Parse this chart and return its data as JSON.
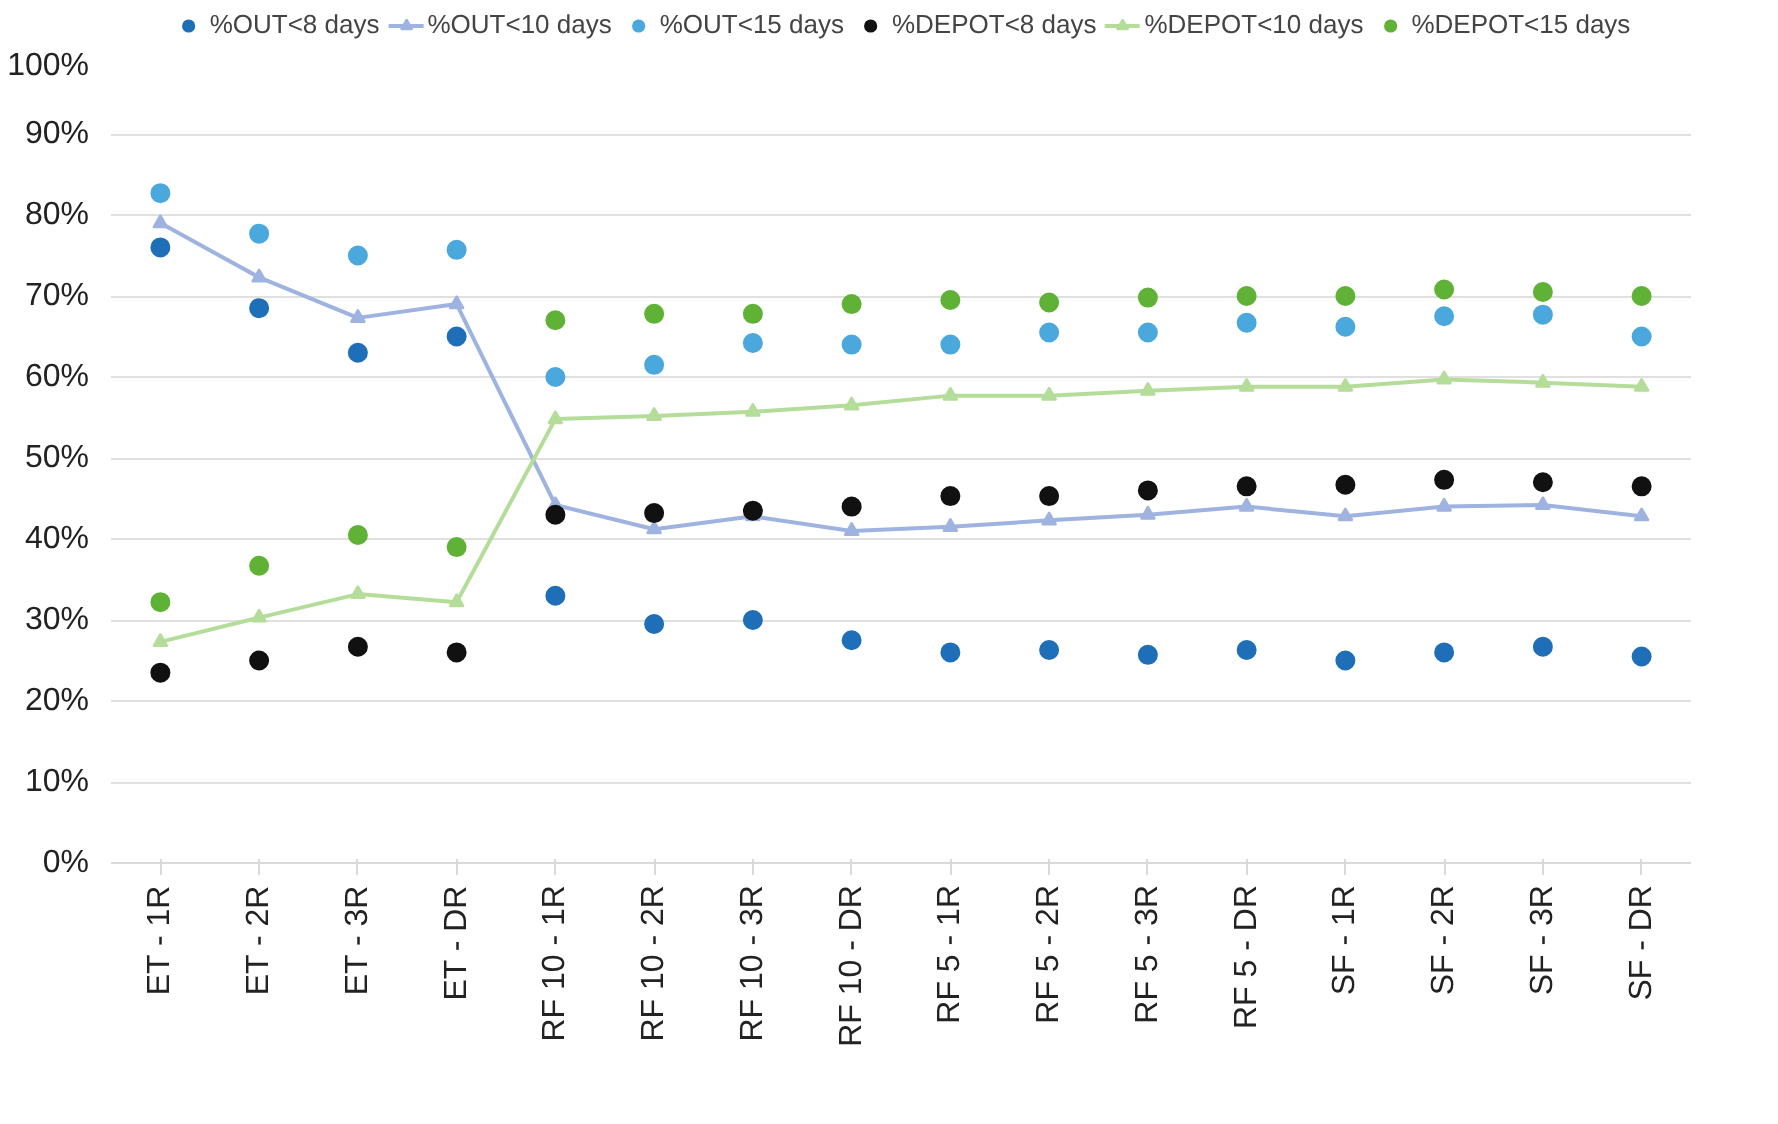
{
  "chart_data": {
    "type": "scatter",
    "categories": [
      "ET - 1R",
      "ET - 2R",
      "ET - 3R",
      "ET - DR",
      "RF 10 - 1R",
      "RF 10 - 2R",
      "RF 10 - 3R",
      "RF 10 - DR",
      "RF 5 - 1R",
      "RF 5 - 2R",
      "RF 5 - 3R",
      "RF 5 - DR",
      "SF - 1R",
      "SF - 2R",
      "SF - 3R",
      "SF - DR"
    ],
    "series": [
      {
        "name": "%OUT<8 days",
        "color": "#1f6fb8",
        "values": [
          76,
          68.5,
          63,
          65,
          33,
          29.5,
          30,
          27.5,
          26,
          26.3,
          25.7,
          26.3,
          25,
          26,
          26.7,
          25.5
        ]
      },
      {
        "name": "%OUT<10 days",
        "type": "line",
        "marker": "triangle",
        "color": "#9fb3e0",
        "values": [
          79,
          72.3,
          67.3,
          69,
          44.2,
          41.2,
          42.8,
          41,
          41.5,
          42.3,
          43,
          44,
          42.8,
          44,
          44.2,
          42.8
        ]
      },
      {
        "name": "%OUT<15 days",
        "color": "#4aa8dd",
        "values": [
          82.7,
          77.7,
          75,
          75.7,
          60,
          61.5,
          64.2,
          64,
          64,
          65.5,
          65.5,
          66.7,
          66.2,
          67.5,
          67.7,
          65
        ]
      },
      {
        "name": "%DEPOT<8 days",
        "color": "#111111",
        "values": [
          23.5,
          25,
          26.7,
          26,
          43,
          43.2,
          43.5,
          44,
          45.3,
          45.3,
          46,
          46.5,
          46.7,
          47.3,
          47,
          46.5
        ]
      },
      {
        "name": "%DEPOT<10 days",
        "type": "line",
        "marker": "triangle",
        "color": "#b5dd9a",
        "values": [
          27.3,
          30.3,
          33.2,
          32.2,
          54.8,
          55.2,
          55.7,
          56.5,
          57.7,
          57.7,
          58.3,
          58.8,
          58.8,
          59.7,
          59.3,
          58.8
        ]
      },
      {
        "name": "%DEPOT<15 days",
        "color": "#5fb235",
        "values": [
          32.2,
          36.7,
          40.5,
          39,
          67,
          67.8,
          67.8,
          69,
          69.5,
          69.2,
          69.8,
          70,
          70,
          70.8,
          70.5,
          70
        ]
      }
    ],
    "ylim": [
      0,
      100
    ],
    "yticks": [
      {
        "value": 0,
        "label": "0%"
      },
      {
        "value": 10,
        "label": "10%"
      },
      {
        "value": 20,
        "label": "20%"
      },
      {
        "value": 30,
        "label": "30%"
      },
      {
        "value": 40,
        "label": "40%"
      },
      {
        "value": 50,
        "label": "50%"
      },
      {
        "value": 60,
        "label": "60%"
      },
      {
        "value": 70,
        "label": "70%"
      },
      {
        "value": 80,
        "label": "80%"
      },
      {
        "value": 90,
        "label": "90%"
      },
      {
        "value": 100,
        "label": "100%"
      }
    ],
    "grid": "y",
    "legend": "top",
    "marker": "circle"
  }
}
